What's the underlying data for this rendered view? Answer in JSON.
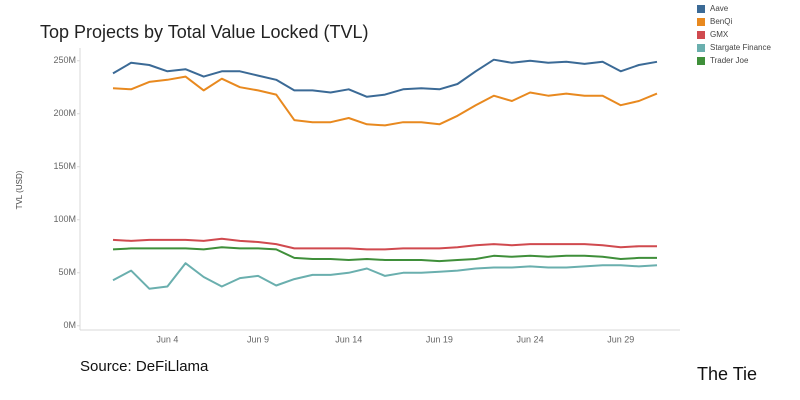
{
  "chart_data": {
    "type": "line",
    "title": "Top Projects by Total Value Locked (TVL)",
    "y_label": "TVL (USD)",
    "source": "Source: DeFiLlama",
    "brand": "The Tie",
    "categories": [
      null,
      null,
      null,
      "Jun 4",
      null,
      null,
      null,
      null,
      "Jun 9",
      null,
      null,
      null,
      null,
      "Jun 14",
      null,
      null,
      null,
      null,
      "Jun 19",
      null,
      null,
      null,
      null,
      "Jun 24",
      null,
      null,
      null,
      null,
      "Jun 29",
      null,
      null
    ],
    "ylim": [
      -4,
      262
    ],
    "yticks": [
      {
        "value": 0,
        "label": "0M"
      },
      {
        "value": 50,
        "label": "50M"
      },
      {
        "value": 100,
        "label": "100M"
      },
      {
        "value": 150,
        "label": "150M"
      },
      {
        "value": 200,
        "label": "200M"
      },
      {
        "value": 250,
        "label": "250M"
      }
    ],
    "legend": "top-right",
    "series": [
      {
        "name": "Aave",
        "color": "#3b6a96",
        "values": [
          238,
          248,
          246,
          240,
          242,
          235,
          240,
          240,
          236,
          232,
          222,
          222,
          220,
          223,
          216,
          218,
          223,
          224,
          223,
          228,
          240,
          251,
          248,
          250,
          248,
          249,
          247,
          249,
          240,
          246,
          249
        ]
      },
      {
        "name": "BenQi",
        "color": "#e8891f",
        "values": [
          224,
          223,
          230,
          232,
          235,
          222,
          233,
          225,
          222,
          218,
          194,
          192,
          192,
          196,
          190,
          189,
          192,
          192,
          190,
          198,
          208,
          217,
          212,
          220,
          217,
          219,
          217,
          217,
          208,
          212,
          219
        ]
      },
      {
        "name": "GMX",
        "color": "#d04a4f",
        "values": [
          81,
          80,
          81,
          81,
          81,
          80,
          82,
          80,
          79,
          77,
          73,
          73,
          73,
          73,
          72,
          72,
          73,
          73,
          73,
          74,
          76,
          77,
          76,
          77,
          77,
          77,
          77,
          76,
          74,
          75,
          75
        ]
      },
      {
        "name": "Stargate Finance",
        "color": "#6aafae",
        "values": [
          43,
          52,
          35,
          37,
          59,
          46,
          37,
          45,
          47,
          38,
          44,
          48,
          48,
          50,
          54,
          47,
          50,
          50,
          51,
          52,
          54,
          55,
          55,
          56,
          55,
          55,
          56,
          57,
          57,
          56,
          57
        ]
      },
      {
        "name": "Trader Joe",
        "color": "#3f8f3a",
        "values": [
          72,
          73,
          73,
          73,
          73,
          72,
          74,
          73,
          73,
          72,
          64,
          63,
          63,
          62,
          63,
          62,
          62,
          62,
          61,
          62,
          63,
          66,
          65,
          66,
          65,
          66,
          66,
          65,
          63,
          64,
          64
        ]
      }
    ]
  }
}
